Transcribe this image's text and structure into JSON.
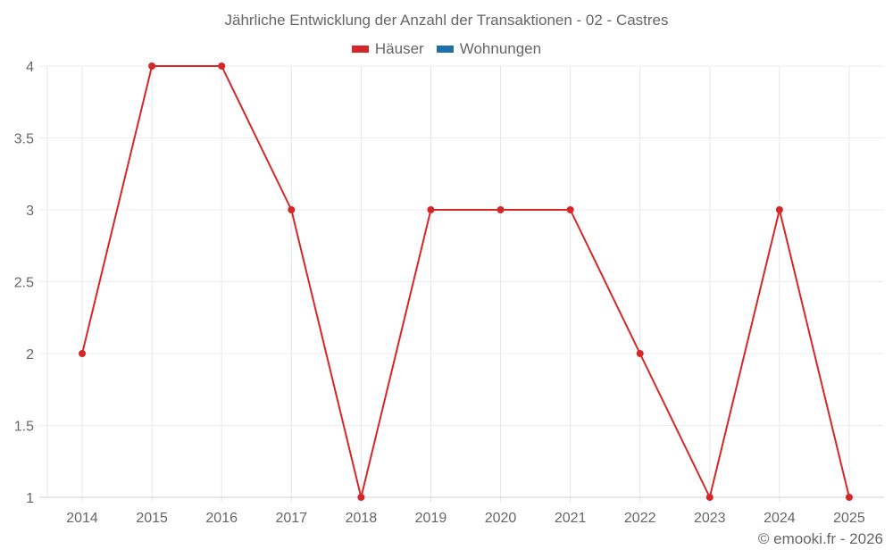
{
  "title": "Jährliche Entwicklung der Anzahl der Transaktionen - 02 - Castres",
  "legend": [
    {
      "label": "Häuser",
      "color": "#d62728"
    },
    {
      "label": "Wohnungen",
      "color": "#1f6fa8"
    }
  ],
  "credit": "© emooki.fr - 2026",
  "chart_data": {
    "type": "line",
    "title": "Jährliche Entwicklung der Anzahl der Transaktionen - 02 - Castres",
    "xlabel": "",
    "ylabel": "",
    "categories": [
      "2014",
      "2015",
      "2016",
      "2017",
      "2018",
      "2019",
      "2020",
      "2021",
      "2022",
      "2023",
      "2024",
      "2025"
    ],
    "series": [
      {
        "name": "Häuser",
        "color": "#d62728",
        "values": [
          2,
          4,
          4,
          3,
          1,
          3,
          3,
          3,
          2,
          1,
          3,
          1
        ]
      },
      {
        "name": "Wohnungen",
        "color": "#1f6fa8",
        "values": []
      }
    ],
    "yticks": [
      "1",
      "1.5",
      "2",
      "2.5",
      "3",
      "3.5",
      "4"
    ],
    "ylim": [
      1,
      4
    ],
    "grid": true,
    "legend_position": "top"
  }
}
